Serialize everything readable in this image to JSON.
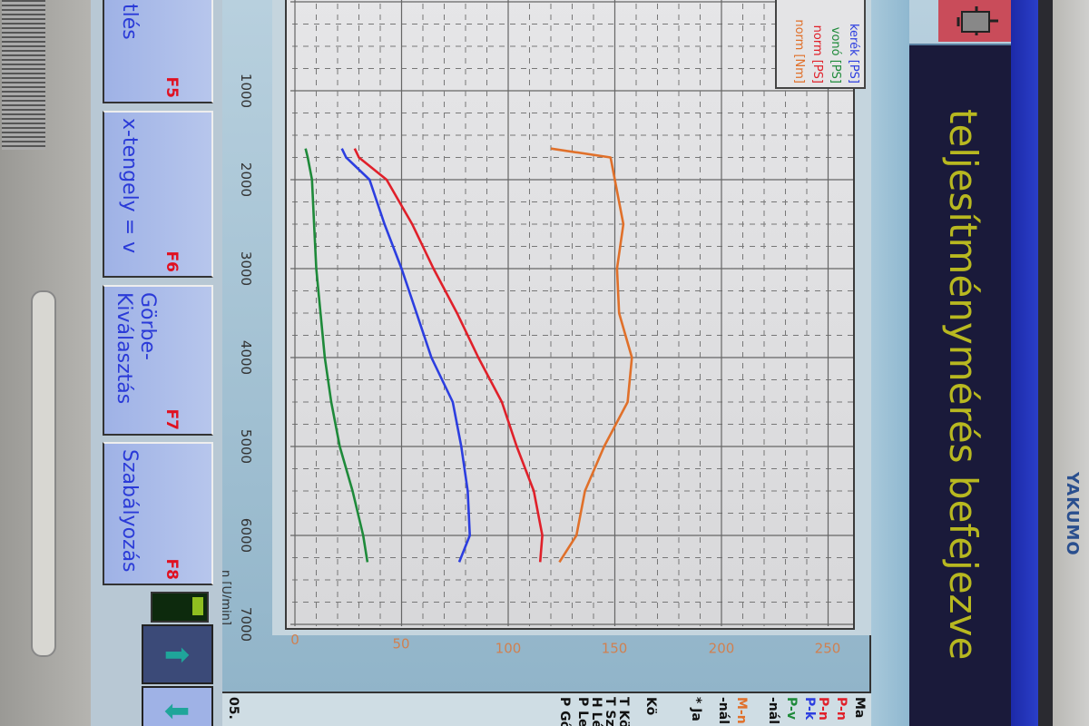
{
  "brand": "YAKUMO",
  "title": "teljesítménymérés befejezve",
  "colors": {
    "p_kerek": "#2c3ee0",
    "p_vono": "#1e8a3a",
    "p_norm": "#e0202a",
    "m_norm": "#e0702a",
    "title_text": "#b8b820",
    "fkey_number": "#e01020"
  },
  "icons": {
    "engine": "engine-icon",
    "next": "arrow-right-icon",
    "prev": "arrow-left-icon"
  },
  "function_keys": [
    {
      "label": "tlés",
      "key": "F5"
    },
    {
      "label": "x-tengely = v",
      "key": "F6"
    },
    {
      "label": "Görbe-\nKiválasztás",
      "key": "F7"
    },
    {
      "label": "Szabályozás",
      "key": "F8"
    }
  ],
  "right_panel": [
    {
      "text": "Ma",
      "color": "#111"
    },
    {
      "text": "P-n",
      "color": "#e0202a"
    },
    {
      "text": "P-n",
      "color": "#e0202a"
    },
    {
      "text": "P-k",
      "color": "#2c3ee0"
    },
    {
      "text": "P-v",
      "color": "#1e8a3a"
    },
    {
      "text": "-nál",
      "color": "#111"
    },
    {
      "text": "M-n",
      "color": "#e0702a"
    },
    {
      "text": "-nál",
      "color": "#111"
    },
    {
      "text": "* Ja",
      "color": "#111"
    },
    {
      "text": "Kö",
      "color": "#111"
    },
    {
      "text": "T Kör",
      "color": "#111"
    },
    {
      "text": "T Szí",
      "color": "#111"
    },
    {
      "text": "H Lév",
      "color": "#111"
    },
    {
      "text": "P Lev",
      "color": "#111"
    },
    {
      "text": "P Gőz",
      "color": "#111"
    },
    {
      "text": "05.",
      "color": "#111"
    }
  ],
  "chart_data": {
    "type": "line",
    "xlabel": "n [U/min]",
    "xlim": [
      1000,
      7000
    ],
    "ylim": [
      0,
      250
    ],
    "x_ticks": [
      1000,
      2000,
      3000,
      4000,
      5000,
      6000,
      7000
    ],
    "y_ticks": [
      0,
      50,
      100,
      150,
      200,
      250
    ],
    "grid": true,
    "legend_position": "top-left",
    "x": [
      1650,
      1750,
      2000,
      2500,
      3000,
      3500,
      4000,
      4500,
      5000,
      5500,
      6000,
      6300
    ],
    "series": [
      {
        "name": "kerék [PS]",
        "color": "#2c3ee0",
        "values": [
          22,
          24,
          35,
          42,
          50,
          57,
          64,
          74,
          78,
          81,
          82,
          77
        ]
      },
      {
        "name": "vonó [PS]",
        "color": "#1e8a3a",
        "values": [
          5,
          6,
          8,
          9,
          10,
          12,
          14,
          17,
          21,
          27,
          32,
          34
        ]
      },
      {
        "name": "norm [PS]",
        "color": "#e0202a",
        "values": [
          28,
          30,
          43,
          55,
          65,
          76,
          86,
          97,
          104,
          112,
          116,
          115
        ]
      },
      {
        "name": "norm [Nm]",
        "color": "#e0702a",
        "values": [
          120,
          148,
          150,
          154,
          151,
          152,
          158,
          156,
          145,
          136,
          132,
          124
        ]
      }
    ]
  }
}
